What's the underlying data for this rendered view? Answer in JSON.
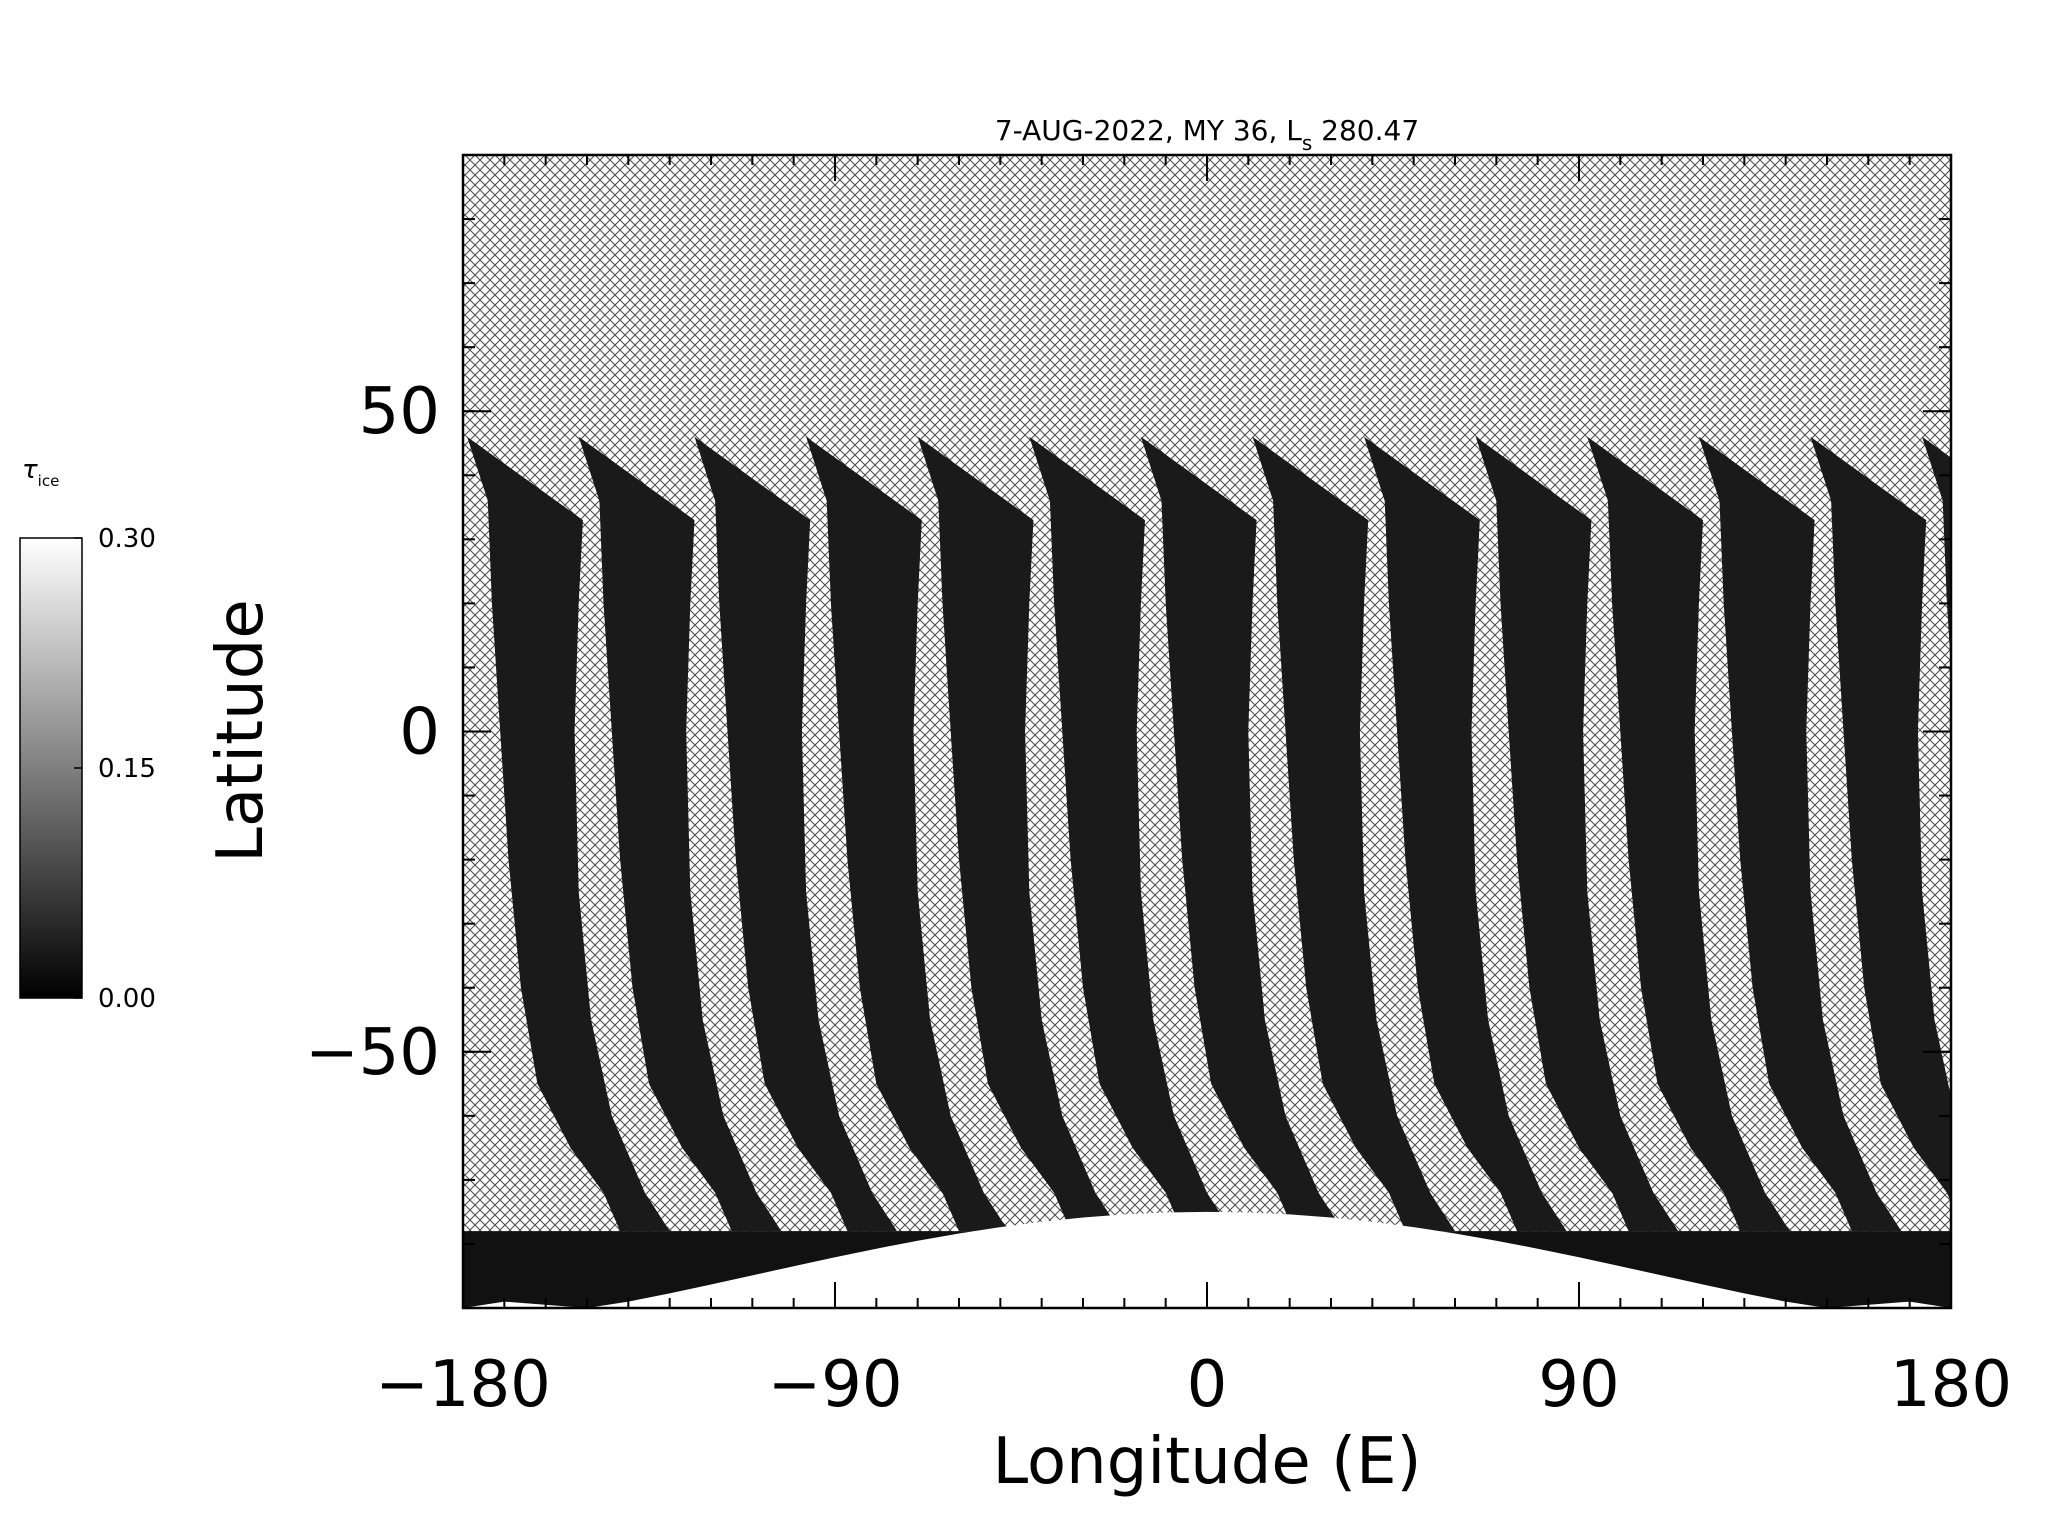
{
  "chart_data": {
    "type": "heatmap",
    "title": {
      "prefix": "7-AUG-2022, MY 36,  L",
      "subscript": "s",
      "suffix": " 280.47"
    },
    "xlabel": "Longitude (E)",
    "ylabel": "Latitude",
    "xlim": [
      -180,
      180
    ],
    "ylim": [
      -90,
      90
    ],
    "x_ticks": [
      -180,
      -90,
      0,
      90,
      180
    ],
    "x_tick_labels": [
      "−180",
      "−90",
      "0",
      "90",
      "180"
    ],
    "y_ticks": [
      -50,
      0,
      50
    ],
    "y_tick_labels": [
      "−50",
      "0",
      "50"
    ],
    "x_minor_step": 10,
    "y_minor_step": 10,
    "grid": false,
    "no_data_fill": "crosshatch",
    "colormap": "grayscale",
    "colorbar": {
      "label_symbol": "τ",
      "label_subscript": "ice",
      "range": [
        0.0,
        0.3
      ],
      "ticks": [
        "0.00",
        "0.15",
        "0.30"
      ],
      "placement": "left"
    },
    "swaths": {
      "count": 14,
      "center_longitudes": [
        -166,
        -139,
        -111,
        -84,
        -57,
        -30,
        -3,
        24,
        51,
        78,
        105,
        132,
        159,
        186
      ],
      "northern_edge_lat": 46,
      "typical_tau": 0.03
    },
    "south_polar_cap": {
      "lat_range": [
        -90,
        -75
      ],
      "tau": 0.3
    }
  }
}
